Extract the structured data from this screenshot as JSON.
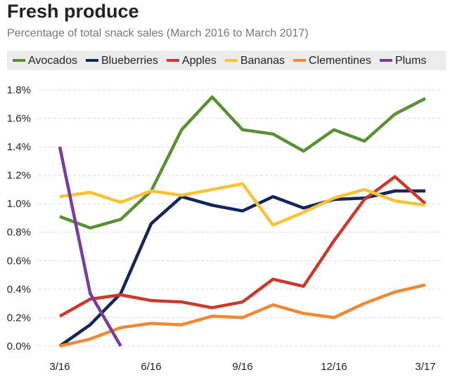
{
  "chart_data": {
    "type": "line",
    "title": "Fresh produce",
    "subtitle": "Percentage of total snack sales (March 2016 to March 2017)",
    "categories": [
      "3/16",
      null,
      null,
      "6/16",
      null,
      null,
      "9/16",
      null,
      null,
      "12/16",
      null,
      null,
      "3/17"
    ],
    "series": [
      {
        "name": "Avocados",
        "color": "#5a8f33",
        "values": [
          0.91,
          0.83,
          0.89,
          1.09,
          1.52,
          1.75,
          1.52,
          1.49,
          1.37,
          1.52,
          1.44,
          1.63,
          1.74
        ]
      },
      {
        "name": "Blueberries",
        "color": "#13265a",
        "values": [
          0,
          0.15,
          0.37,
          0.86,
          1.05,
          0.99,
          0.95,
          1.05,
          0.97,
          1.03,
          1.04,
          1.09,
          1.09
        ]
      },
      {
        "name": "Apples",
        "color": "#c93a2c",
        "values": [
          0.21,
          0.33,
          0.36,
          0.32,
          0.31,
          0.27,
          0.31,
          0.47,
          0.42,
          0.74,
          1.03,
          1.19,
          1.0
        ]
      },
      {
        "name": "Bananas",
        "color": "#f7c233",
        "values": [
          1.05,
          1.08,
          1.01,
          1.09,
          1.06,
          1.1,
          1.14,
          0.85,
          0.94,
          1.04,
          1.1,
          1.02,
          0.99
        ]
      },
      {
        "name": "Clementines",
        "color": "#ee8a35",
        "values": [
          0,
          0.05,
          0.13,
          0.16,
          0.15,
          0.21,
          0.2,
          0.29,
          0.23,
          0.2,
          0.3,
          0.38,
          0.43
        ]
      },
      {
        "name": "Plums",
        "color": "#7a3d9f",
        "values": [
          1.4,
          0.37,
          0,
          null,
          null,
          null,
          null,
          null,
          null,
          null,
          null,
          null,
          null
        ]
      }
    ],
    "ylim": [
      0,
      1.8
    ],
    "yticks": [
      {
        "value": 0,
        "label": "0.0%"
      },
      {
        "value": 0.2,
        "label": "0.2%"
      },
      {
        "value": 0.4,
        "label": "0.4%"
      },
      {
        "value": 0.6,
        "label": "0.6%"
      },
      {
        "value": 0.8,
        "label": "0.8%"
      },
      {
        "value": 1.0,
        "label": "1.0%"
      },
      {
        "value": 1.2,
        "label": "1.2%"
      },
      {
        "value": 1.4,
        "label": "1.4%"
      },
      {
        "value": 1.6,
        "label": "1.6%"
      },
      {
        "value": 1.8,
        "label": "1.8%"
      }
    ],
    "grid": true,
    "legend": "top"
  }
}
